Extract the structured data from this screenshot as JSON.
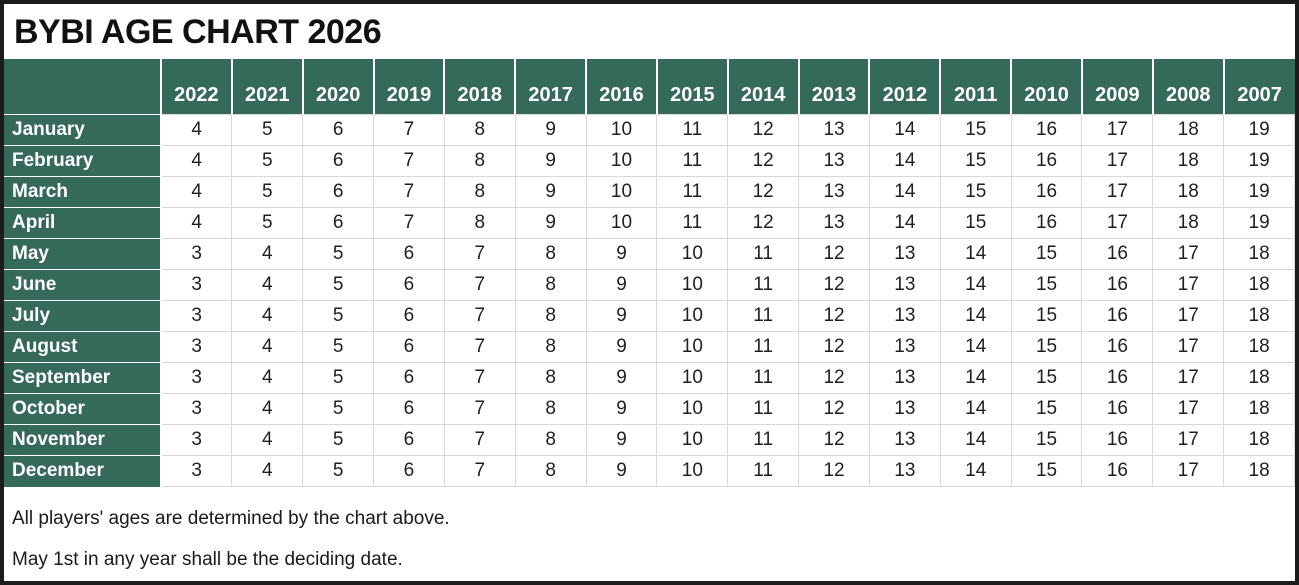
{
  "title": "BYBI AGE CHART 2026",
  "chart_data": {
    "type": "table",
    "title": "BYBI AGE CHART 2026",
    "columns": [
      "2022",
      "2021",
      "2020",
      "2019",
      "2018",
      "2017",
      "2016",
      "2015",
      "2014",
      "2013",
      "2012",
      "2011",
      "2010",
      "2009",
      "2008",
      "2007"
    ],
    "rows": [
      {
        "label": "January",
        "values": [
          4,
          5,
          6,
          7,
          8,
          9,
          10,
          11,
          12,
          13,
          14,
          15,
          16,
          17,
          18,
          19
        ]
      },
      {
        "label": "February",
        "values": [
          4,
          5,
          6,
          7,
          8,
          9,
          10,
          11,
          12,
          13,
          14,
          15,
          16,
          17,
          18,
          19
        ]
      },
      {
        "label": "March",
        "values": [
          4,
          5,
          6,
          7,
          8,
          9,
          10,
          11,
          12,
          13,
          14,
          15,
          16,
          17,
          18,
          19
        ]
      },
      {
        "label": "April",
        "values": [
          4,
          5,
          6,
          7,
          8,
          9,
          10,
          11,
          12,
          13,
          14,
          15,
          16,
          17,
          18,
          19
        ]
      },
      {
        "label": "May",
        "values": [
          3,
          4,
          5,
          6,
          7,
          8,
          9,
          10,
          11,
          12,
          13,
          14,
          15,
          16,
          17,
          18
        ]
      },
      {
        "label": "June",
        "values": [
          3,
          4,
          5,
          6,
          7,
          8,
          9,
          10,
          11,
          12,
          13,
          14,
          15,
          16,
          17,
          18
        ]
      },
      {
        "label": "July",
        "values": [
          3,
          4,
          5,
          6,
          7,
          8,
          9,
          10,
          11,
          12,
          13,
          14,
          15,
          16,
          17,
          18
        ]
      },
      {
        "label": "August",
        "values": [
          3,
          4,
          5,
          6,
          7,
          8,
          9,
          10,
          11,
          12,
          13,
          14,
          15,
          16,
          17,
          18
        ]
      },
      {
        "label": "September",
        "values": [
          3,
          4,
          5,
          6,
          7,
          8,
          9,
          10,
          11,
          12,
          13,
          14,
          15,
          16,
          17,
          18
        ]
      },
      {
        "label": "October",
        "values": [
          3,
          4,
          5,
          6,
          7,
          8,
          9,
          10,
          11,
          12,
          13,
          14,
          15,
          16,
          17,
          18
        ]
      },
      {
        "label": "November",
        "values": [
          3,
          4,
          5,
          6,
          7,
          8,
          9,
          10,
          11,
          12,
          13,
          14,
          15,
          16,
          17,
          18
        ]
      },
      {
        "label": "December",
        "values": [
          3,
          4,
          5,
          6,
          7,
          8,
          9,
          10,
          11,
          12,
          13,
          14,
          15,
          16,
          17,
          18
        ]
      }
    ],
    "notes": [
      "All players' ages are determined by the chart above.",
      "May 1st in any year shall be the deciding date."
    ]
  },
  "footer": {
    "line1": "All players' ages are determined by the chart above.",
    "line2": "May 1st in any year shall be the deciding date."
  },
  "colors": {
    "header_green": "#35695a",
    "grid_gray": "#d9d9d9",
    "frame_black": "#1c1c1c",
    "header_text": "#ffffff",
    "body_text": "#1f1f1f"
  }
}
